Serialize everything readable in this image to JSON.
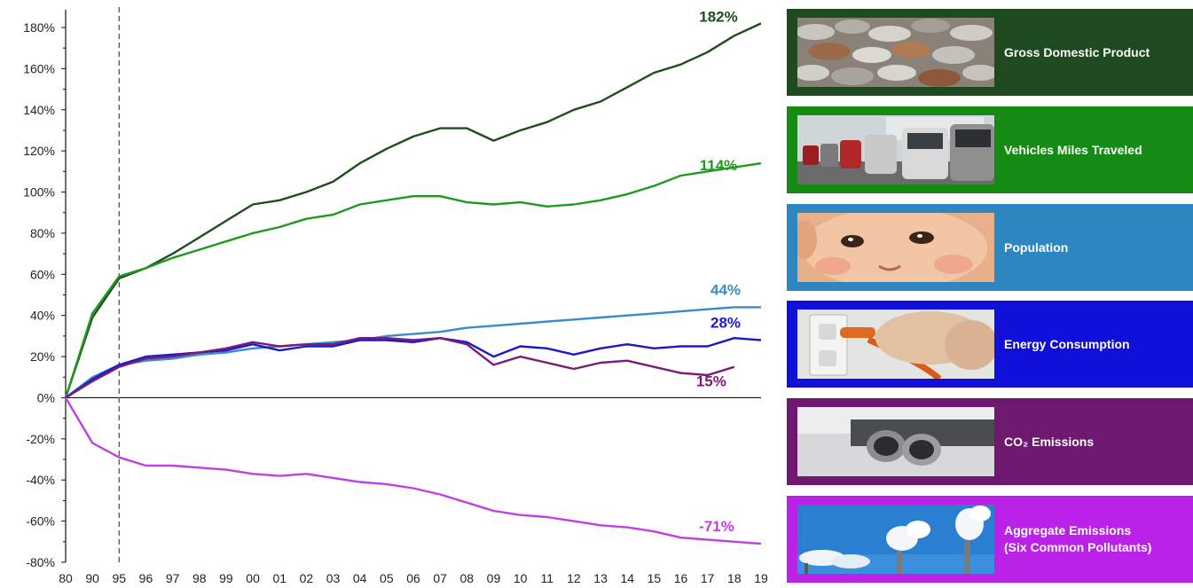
{
  "chart_data": {
    "type": "line",
    "x": [
      "80",
      "90",
      "95",
      "96",
      "97",
      "98",
      "99",
      "00",
      "01",
      "02",
      "03",
      "04",
      "05",
      "06",
      "07",
      "08",
      "09",
      "10",
      "11",
      "12",
      "13",
      "14",
      "15",
      "16",
      "17",
      "18",
      "19"
    ],
    "ylim": [
      -80,
      180
    ],
    "yticks": [
      -80,
      -60,
      -40,
      -20,
      0,
      20,
      40,
      60,
      80,
      100,
      120,
      140,
      160,
      180
    ],
    "ytick_labels": [
      "-80%",
      "-60%",
      "-40%",
      "-20%",
      "0%",
      "20%",
      "40%",
      "60%",
      "80%",
      "100%",
      "120%",
      "140%",
      "160%",
      "180%"
    ],
    "reference_line_x": "95",
    "grid": false,
    "series": [
      {
        "name": "Gross Domestic Product",
        "color": "#1e4d1e",
        "end_label": "182%",
        "values": [
          0,
          39,
          58,
          63,
          70,
          78,
          86,
          94,
          96,
          100,
          105,
          114,
          121,
          127,
          131,
          131,
          125,
          130,
          134,
          140,
          144,
          151,
          158,
          162,
          168,
          176,
          182
        ]
      },
      {
        "name": "Vehicles Miles Traveled",
        "color": "#1e9a1e",
        "end_label": "114%",
        "values": [
          0,
          41,
          59,
          63,
          68,
          72,
          76,
          80,
          83,
          87,
          89,
          94,
          96,
          98,
          98,
          95,
          94,
          95,
          93,
          94,
          96,
          99,
          103,
          108,
          110,
          112,
          114
        ]
      },
      {
        "name": "Population",
        "color": "#3a8cc8",
        "end_label": "44%",
        "values": [
          0,
          10,
          16,
          18,
          19,
          21,
          22,
          24,
          25,
          26,
          27,
          28,
          30,
          31,
          32,
          34,
          35,
          36,
          37,
          38,
          39,
          40,
          41,
          42,
          43,
          44,
          44
        ]
      },
      {
        "name": "Energy Consumption",
        "color": "#1a1ac8",
        "end_label": "28%",
        "values": [
          0,
          9,
          16,
          20,
          21,
          22,
          23,
          26,
          23,
          25,
          25,
          28,
          28,
          27,
          29,
          27,
          20,
          25,
          24,
          21,
          24,
          26,
          24,
          25,
          25,
          29,
          28
        ]
      },
      {
        "name": "CO₂ Emissions",
        "color": "#7a1a7a",
        "end_label": "15%",
        "values": [
          0,
          8,
          15,
          19,
          20,
          22,
          24,
          27,
          25,
          26,
          26,
          29,
          29,
          28,
          29,
          26,
          16,
          20,
          17,
          14,
          17,
          18,
          15,
          12,
          11,
          15,
          null
        ]
      },
      {
        "name": "Aggregate Emissions (Six Common Pollutants)",
        "color": "#c040e0",
        "end_label": "-71%",
        "values": [
          0,
          -22,
          -29,
          -33,
          -33,
          -34,
          -35,
          -37,
          -38,
          -37,
          -39,
          -41,
          -42,
          -44,
          -47,
          -51,
          -55,
          -57,
          -58,
          -60,
          -62,
          -63,
          -65,
          -68,
          -69,
          -70,
          -71
        ]
      }
    ]
  },
  "legend": [
    {
      "label_lines": [
        "Gross Domestic Product"
      ],
      "bg": "#1f4a1f",
      "thumb": "coins"
    },
    {
      "label_lines": [
        "Vehicles Miles Traveled"
      ],
      "bg": "#158a15",
      "thumb": "traffic"
    },
    {
      "label_lines": [
        "Population"
      ],
      "bg": "#2e86c1",
      "thumb": "baby-face"
    },
    {
      "label_lines": [
        "Energy Consumption"
      ],
      "bg": "#1010d8",
      "thumb": "power-plug"
    },
    {
      "label_lines": [
        "CO₂ Emissions"
      ],
      "bg": "#6e1870",
      "thumb": "exhaust-pipe"
    },
    {
      "label_lines": [
        "Aggregate Emissions",
        "(Six Common Pollutants)"
      ],
      "bg": "#bb22e8",
      "thumb": "smokestacks"
    }
  ]
}
